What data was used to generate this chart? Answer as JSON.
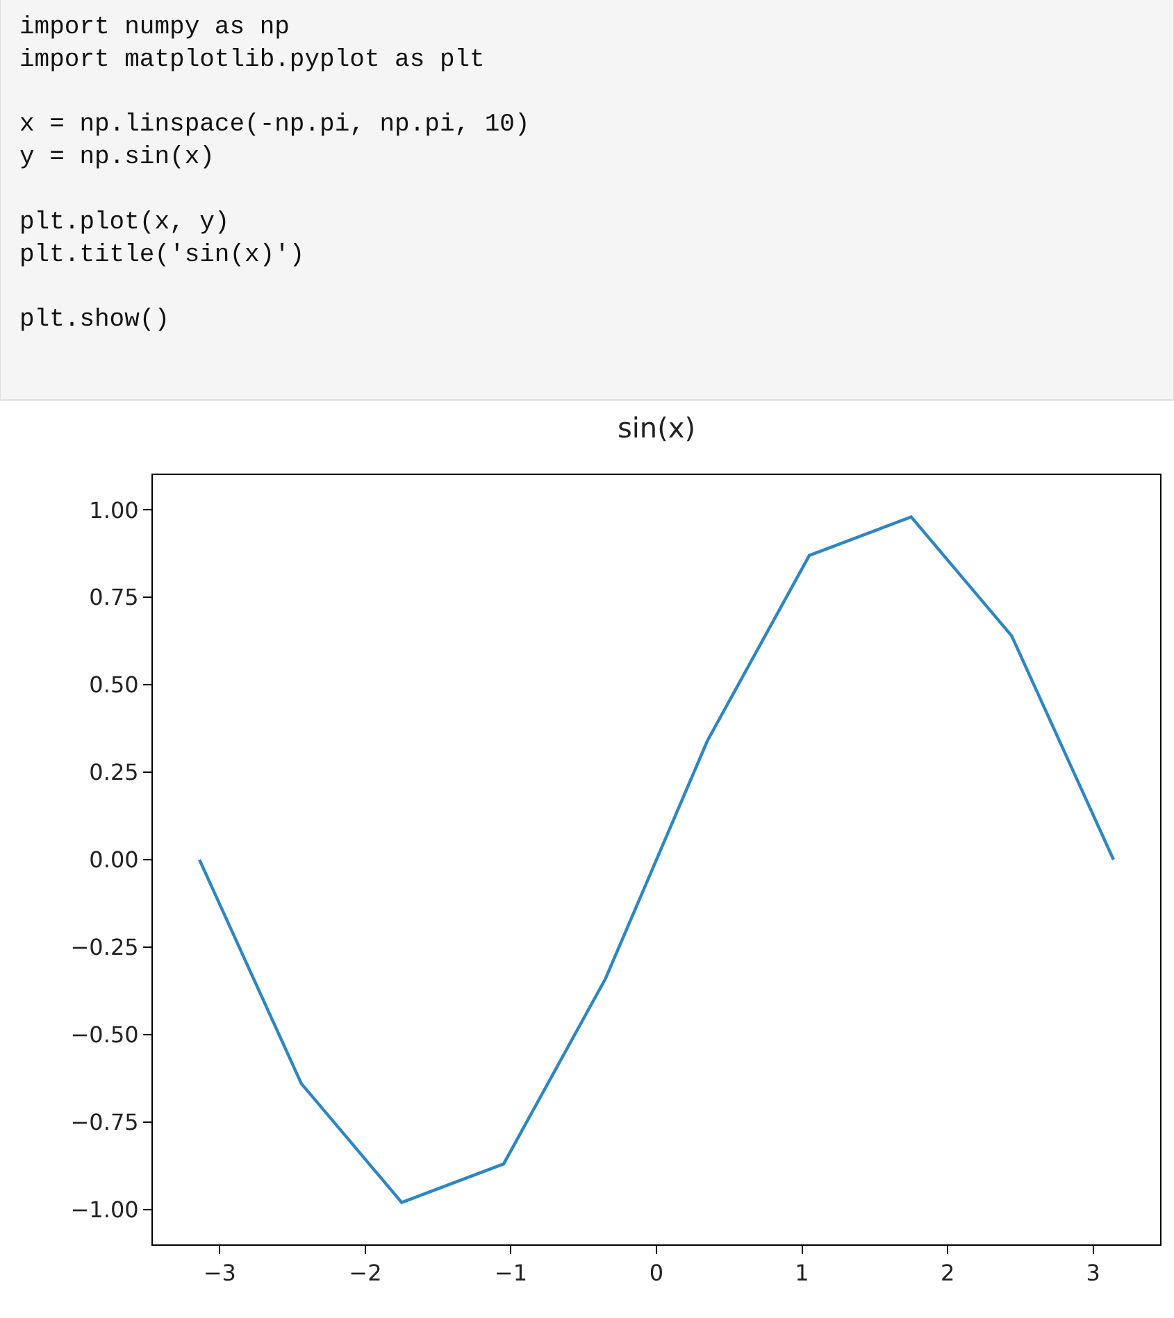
{
  "chart_data": {
    "type": "line",
    "title": "sin(x)",
    "annotations": [
      "import numpy as np\nimport matplotlib.pyplot as plt\n\nx = np.linspace(-np.pi, np.pi, 10)\ny = np.sin(x)\n\nplt.plot(x, y)\nplt.title('sin(x)')\n\nplt.show()"
    ],
    "x": [
      -3.14,
      -2.44,
      -1.75,
      -1.05,
      -0.35,
      0.35,
      1.05,
      1.75,
      2.44,
      3.14
    ],
    "series": [
      {
        "color": "#2e86c1",
        "values": [
          0.0,
          -0.64,
          -0.98,
          -0.87,
          -0.34,
          0.34,
          0.87,
          0.98,
          0.64,
          0.0
        ]
      }
    ],
    "xlim": [
      -3.46,
      3.46
    ],
    "ylim": [
      -1.1,
      1.1
    ],
    "xticks": [
      {
        "value": -3,
        "label": "−3"
      },
      {
        "value": -2,
        "label": "−2"
      },
      {
        "value": -1,
        "label": "−1"
      },
      0,
      1,
      2,
      3
    ],
    "yticks": [
      {
        "value": -1,
        "label": "−1.00"
      },
      {
        "value": -0.75,
        "label": "−0.75"
      },
      {
        "value": -0.5,
        "label": "−0.50"
      },
      {
        "value": -0.25,
        "label": "−0.25"
      },
      {
        "value": 0,
        "label": "0.00"
      },
      {
        "value": 0.25,
        "label": "0.25"
      },
      {
        "value": 0.5,
        "label": "0.50"
      },
      {
        "value": 0.75,
        "label": "0.75"
      },
      {
        "value": 1,
        "label": "1.00"
      }
    ],
    "legend": false,
    "marker": "none",
    "line_style": "solid"
  }
}
